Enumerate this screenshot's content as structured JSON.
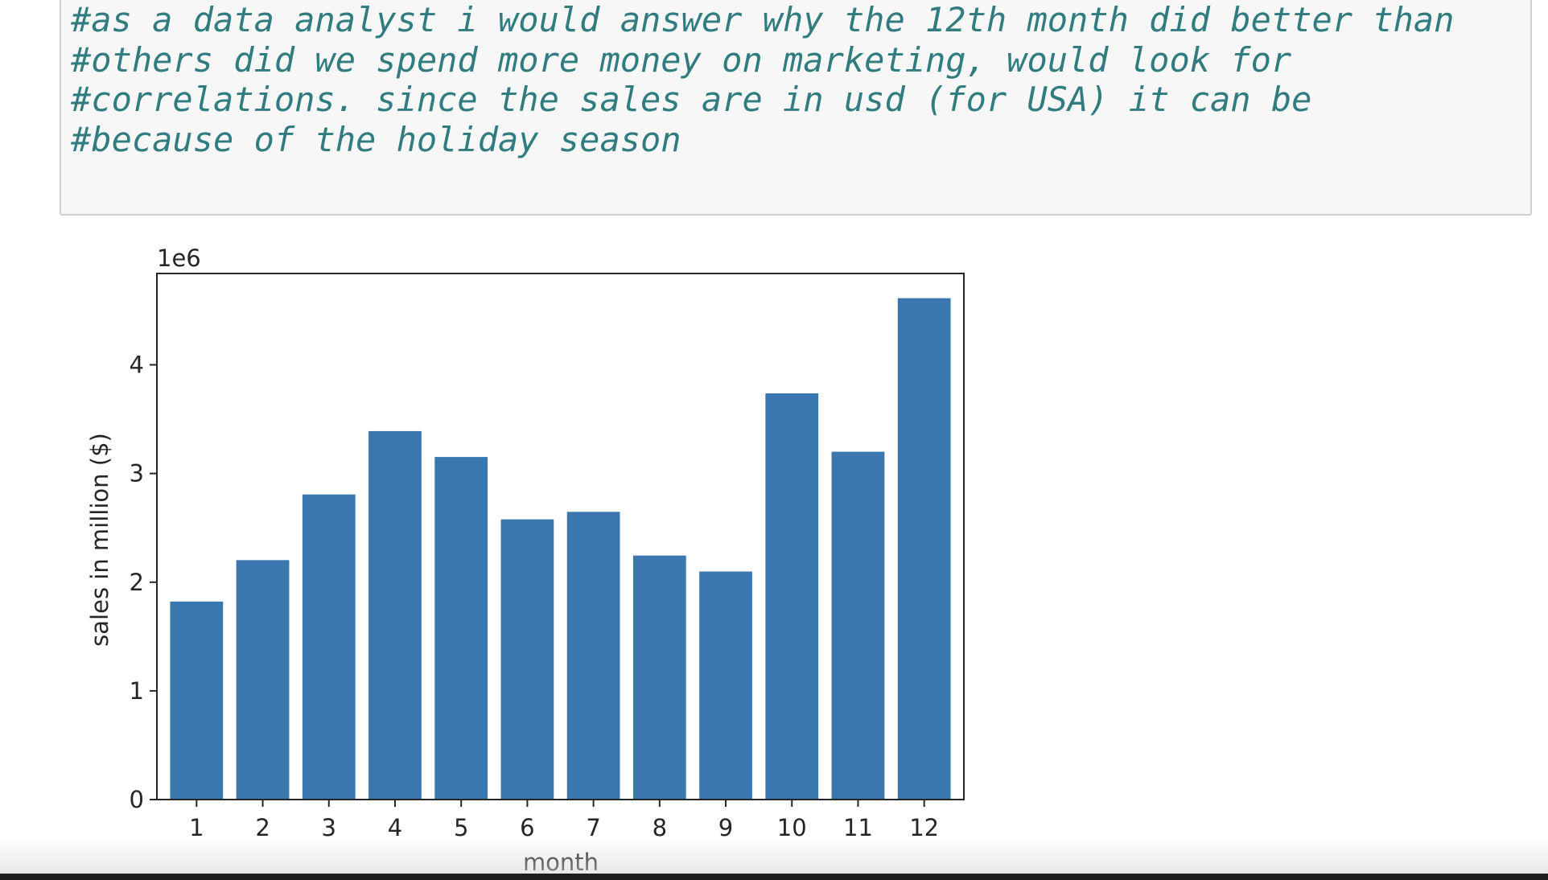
{
  "code_cell": {
    "lines": [
      "#as a data analyst i would answer why the 12th month did better than",
      "#others did we spend more money on marketing, would look for",
      "#correlations. since the sales are in usd (for USA) it can be",
      "#because of the holiday season"
    ]
  },
  "chart_data": {
    "type": "bar",
    "categories": [
      "1",
      "2",
      "3",
      "4",
      "5",
      "6",
      "7",
      "8",
      "9",
      "10",
      "11",
      "12"
    ],
    "values": [
      1822000,
      2203000,
      2807000,
      3390000,
      3152000,
      2578000,
      2647000,
      2245000,
      2098000,
      3737000,
      3200000,
      4613000
    ],
    "xlabel": "month",
    "ylabel": "sales in million ($)",
    "offset_label": "1e6",
    "yticks": [
      0,
      1,
      2,
      3,
      4
    ],
    "ytick_scale": 1000000,
    "ylim": [
      0,
      4840000
    ],
    "bar_color": "#3a77ae",
    "grid": false,
    "legend": "none"
  }
}
